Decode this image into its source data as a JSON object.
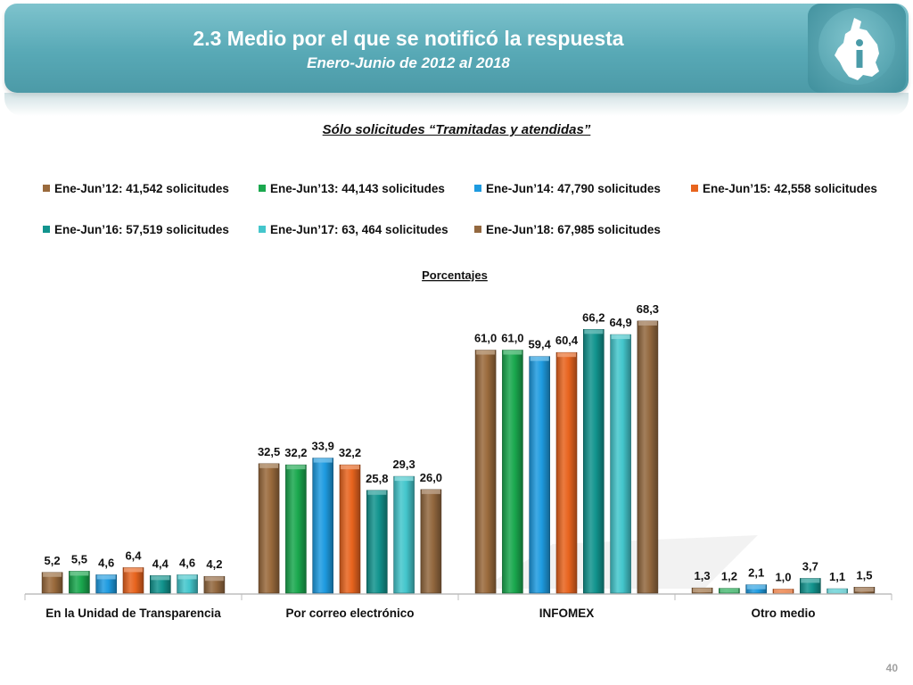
{
  "header": {
    "title": "2.3 Medio por el que se notificó la respuesta",
    "subtitle": "Enero-Junio de 2012 al 2018",
    "logo_icon": "cdmx-map-info-icon"
  },
  "chart_heading": "Sólo solicitudes “Tramitadas y atendidas”",
  "page_number": "40",
  "chart_data": {
    "type": "bar",
    "title": "Porcentajes",
    "categories": [
      "En la Unidad de Transparencia",
      "Por correo electrónico",
      "INFOMEX",
      "Otro medio"
    ],
    "legend_position": "top",
    "grid": false,
    "ylim": [
      0,
      75
    ],
    "series": [
      {
        "name": "Ene-Jun’12: 41,542 solicitudes",
        "color": "#9a6a3c",
        "values": [
          5.2,
          32.5,
          61.0,
          1.3
        ],
        "labels": [
          "5,2",
          "32,5",
          "61,0",
          "1,3"
        ]
      },
      {
        "name": "Ene-Jun’13: 44,143 solicitudes",
        "color": "#1aa84e",
        "values": [
          5.5,
          32.2,
          61.0,
          1.2
        ],
        "labels": [
          "5,5",
          "32,2",
          "61,0",
          "1,2"
        ]
      },
      {
        "name": "Ene-Jun’14: 47,790 solicitudes",
        "color": "#1e9be0",
        "values": [
          4.6,
          33.9,
          59.4,
          2.1
        ],
        "labels": [
          "4,6",
          "33,9",
          "59,4",
          "2,1"
        ]
      },
      {
        "name": "Ene-Jun’15: 42,558 solicitudes",
        "color": "#e8641e",
        "values": [
          6.4,
          32.2,
          60.4,
          1.0
        ],
        "labels": [
          "6,4",
          "32,2",
          "60,4",
          "1,0"
        ]
      },
      {
        "name": "Ene-Jun’16: 57,519 solicitudes",
        "color": "#12948e",
        "values": [
          4.4,
          25.8,
          66.2,
          3.7
        ],
        "labels": [
          "4,4",
          "25,8",
          "66,2",
          "3,7"
        ]
      },
      {
        "name": "Ene-Jun’17: 63, 464 solicitudes",
        "color": "#44c6cc",
        "values": [
          4.6,
          29.3,
          64.9,
          1.1
        ],
        "labels": [
          "4,6",
          "29,3",
          "64,9",
          "1,1"
        ]
      },
      {
        "name": "Ene-Jun’18: 67,985 solicitudes",
        "color": "#93683f",
        "values": [
          4.2,
          26.0,
          68.3,
          1.5
        ],
        "labels": [
          "4,2",
          "26,0",
          "68,3",
          "1,5"
        ]
      }
    ]
  }
}
